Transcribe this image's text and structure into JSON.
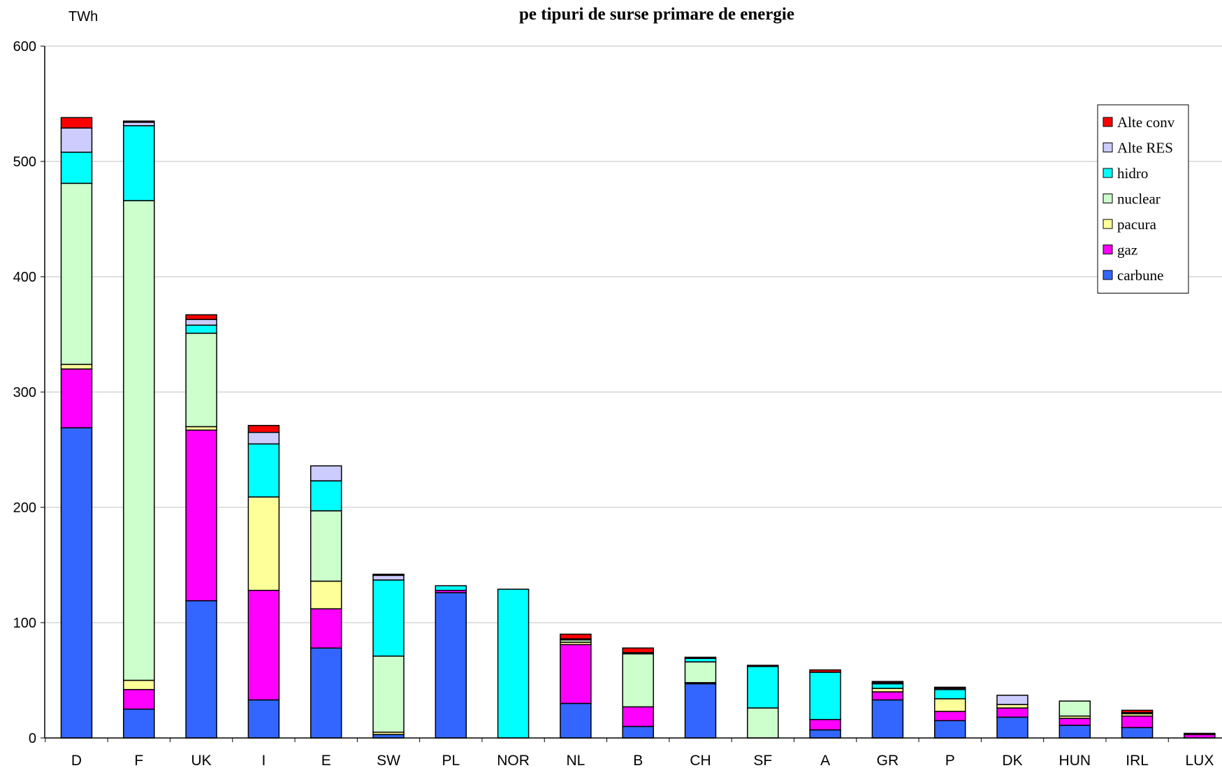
{
  "chart_data": {
    "type": "bar",
    "stacked": true,
    "title": "pe tipuri de surse primare de energie",
    "ylabel": "TWh",
    "xlabel": "",
    "ylim": [
      0,
      600
    ],
    "yticks": [
      0,
      100,
      200,
      300,
      400,
      500,
      600
    ],
    "grid": true,
    "legend_position": "top-right",
    "categories": [
      "D",
      "F",
      "UK",
      "I",
      "E",
      "SW",
      "PL",
      "NOR",
      "NL",
      "B",
      "CH",
      "SF",
      "A",
      "GR",
      "P",
      "DK",
      "HUN",
      "IRL",
      "LUX"
    ],
    "series": [
      {
        "name": "carbune",
        "color": "#3366FF",
        "values": [
          269,
          25,
          119,
          33,
          78,
          3,
          126,
          0,
          30,
          10,
          47,
          0,
          7,
          33,
          15,
          18,
          11,
          9,
          0
        ]
      },
      {
        "name": "gaz",
        "color": "#FF00FF",
        "values": [
          51,
          17,
          148,
          95,
          34,
          0,
          2,
          0,
          51,
          17,
          1,
          0,
          9,
          7,
          8,
          8,
          6,
          10,
          3
        ]
      },
      {
        "name": "pacura",
        "color": "#FFFF99",
        "values": [
          4,
          8,
          3,
          81,
          24,
          2,
          0,
          0,
          2,
          0,
          0,
          0,
          0,
          3,
          11,
          3,
          2,
          2,
          0
        ]
      },
      {
        "name": "nuclear",
        "color": "#CCFFCC",
        "values": [
          157,
          416,
          81,
          0,
          61,
          66,
          0,
          0,
          2,
          46,
          18,
          26,
          0,
          0,
          0,
          0,
          13,
          0,
          0
        ]
      },
      {
        "name": "hidro",
        "color": "#00FFFF",
        "values": [
          27,
          65,
          7,
          46,
          26,
          66,
          4,
          129,
          0,
          1,
          3,
          36,
          41,
          4,
          8,
          0,
          0,
          1,
          0
        ]
      },
      {
        "name": "Alte RES",
        "color": "#CCCCFF",
        "values": [
          21,
          3,
          5,
          10,
          13,
          4,
          0,
          0,
          1,
          0,
          0,
          0,
          0,
          1,
          1,
          8,
          0,
          0,
          0
        ]
      },
      {
        "name": "Alte conv",
        "color": "#FF0000",
        "values": [
          9,
          1,
          4,
          6,
          0,
          1,
          0,
          0,
          4,
          4,
          1,
          1,
          2,
          1,
          1,
          0,
          0,
          2,
          1
        ]
      }
    ]
  }
}
